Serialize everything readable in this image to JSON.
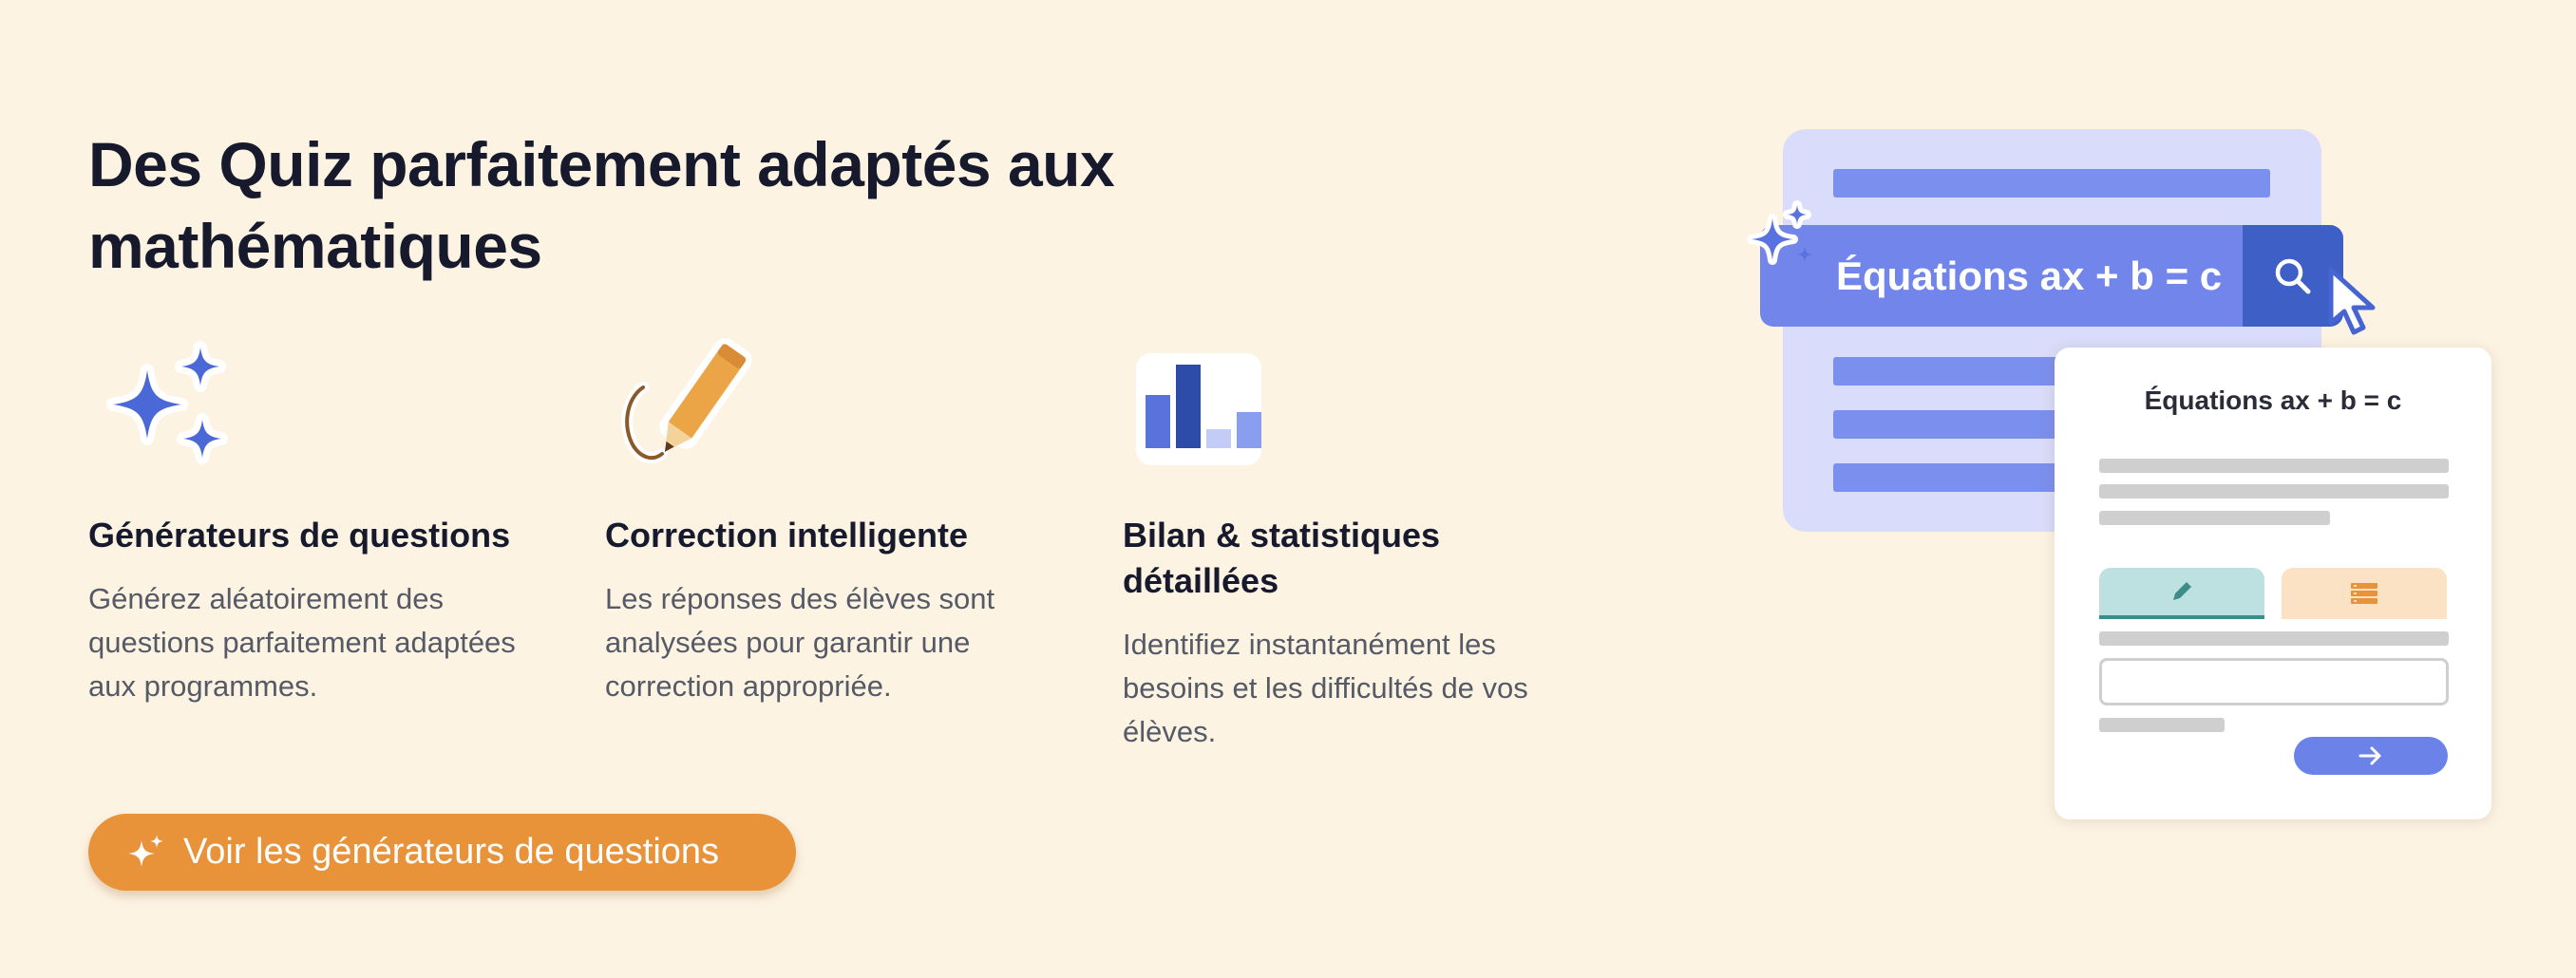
{
  "page": {
    "title": "Des Quiz parfaitement adaptés aux mathématiques"
  },
  "features": [
    {
      "icon": "sparkles-icon",
      "title": "Générateurs de questions",
      "description": "Générez aléatoirement des questions parfaitement adaptées aux programmes."
    },
    {
      "icon": "pencil-icon",
      "title": "Correction intelligente",
      "description": "Les réponses des élèves sont analysées pour garantir une correction appropriée."
    },
    {
      "icon": "bar-chart-icon",
      "title": "Bilan & statistiques détaillées",
      "description": "Identifiez instantanément les besoins et les difficultés de vos élèves."
    }
  ],
  "cta": {
    "label": "Voir les générateurs de questions",
    "icon": "sparkles-icon"
  },
  "illustration": {
    "search_text": "Équations ax + b = c",
    "search_icon": "search-icon",
    "cursor_icon": "cursor-icon",
    "card_title": "Équations ax + b = c",
    "tab_icons": [
      "pencil-icon",
      "list-icon"
    ],
    "next_icon": "arrow-right-icon"
  },
  "colors": {
    "background": "#fdf3e3",
    "accent_orange": "#e8923a",
    "accent_blue": "#7185ea",
    "dark_blue": "#3d5fc6",
    "text_dark": "#161a2c",
    "text_muted": "#555a66"
  }
}
